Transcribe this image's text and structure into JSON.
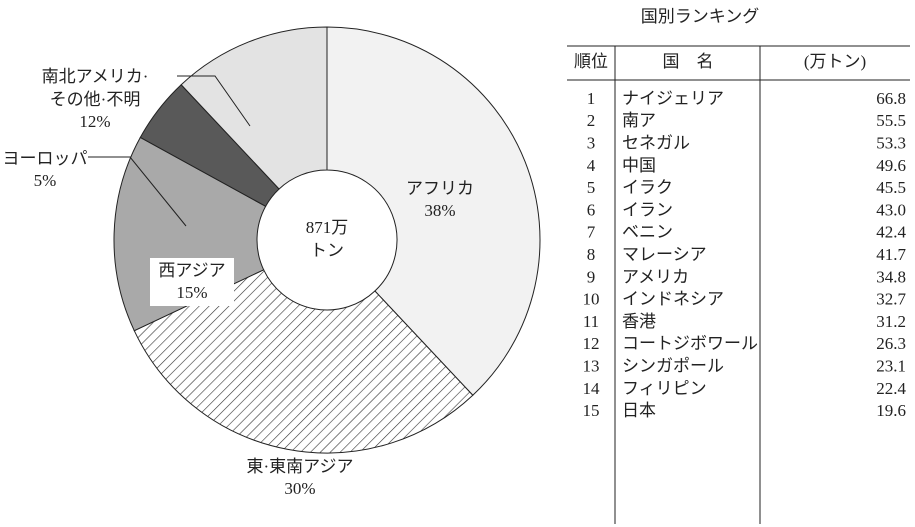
{
  "chart_data": {
    "type": "donut",
    "center_label": "871万\nトン",
    "categories": [
      "アフリカ",
      "東·東南アジア",
      "西アジア",
      "ヨーロッパ",
      "南北アメリカ·\nその他·不明"
    ],
    "values": [
      38,
      30,
      15,
      5,
      12
    ],
    "value_labels": [
      "38%",
      "30%",
      "15%",
      "5%",
      "12%"
    ],
    "colors": [
      "#f2f2f2",
      "#ffffff",
      "#a9a9a9",
      "#595959",
      "#e3e3e3"
    ],
    "hatch": [
      false,
      true,
      false,
      false,
      false
    ]
  },
  "table": {
    "title": "国別ランキング",
    "headers": [
      "順位",
      "国　名",
      "(万トン)"
    ],
    "rows": [
      [
        1,
        "ナイジェリア",
        "66.8"
      ],
      [
        2,
        "南ア",
        "55.5"
      ],
      [
        3,
        "セネガル",
        "53.3"
      ],
      [
        4,
        "中国",
        "49.6"
      ],
      [
        5,
        "イラク",
        "45.5"
      ],
      [
        6,
        "イラン",
        "43.0"
      ],
      [
        7,
        "ベニン",
        "42.4"
      ],
      [
        8,
        "マレーシア",
        "41.7"
      ],
      [
        9,
        "アメリカ",
        "34.8"
      ],
      [
        10,
        "インドネシア",
        "32.7"
      ],
      [
        11,
        "香港",
        "31.2"
      ],
      [
        12,
        "コートジボワール",
        "26.3"
      ],
      [
        13,
        "シンガポール",
        "23.1"
      ],
      [
        14,
        "フィリピン",
        "22.4"
      ],
      [
        15,
        "日本",
        "19.6"
      ]
    ]
  }
}
